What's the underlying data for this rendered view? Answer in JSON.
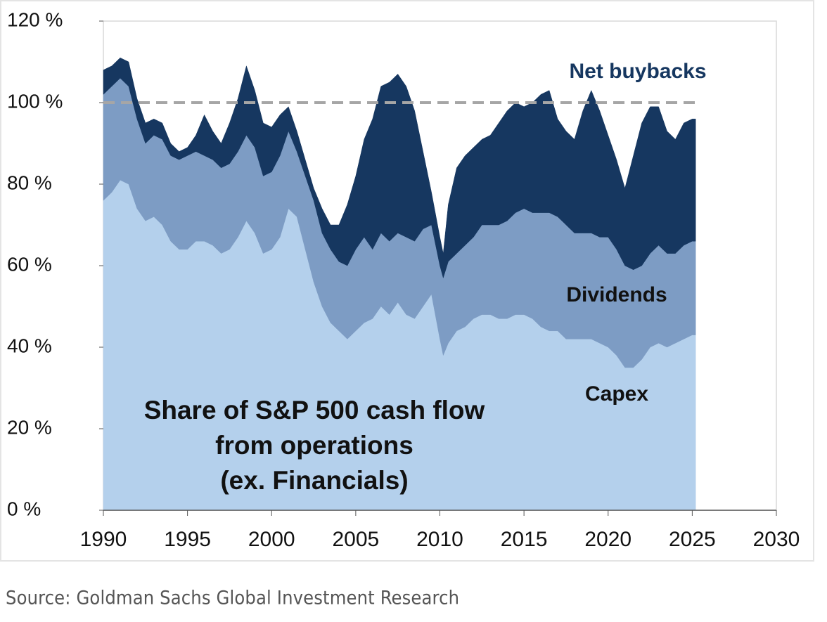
{
  "chart_data": {
    "type": "stacked_area",
    "title": [
      "Share of S&P 500 cash flow",
      "from operations",
      "(ex. Financials)"
    ],
    "source": "Source: Goldman Sachs Global Investment Research",
    "x": [
      1990.0,
      1990.5,
      1991.0,
      1991.5,
      1992.0,
      1992.5,
      1993.0,
      1993.5,
      1994.0,
      1994.5,
      1995.0,
      1995.5,
      1996.0,
      1996.5,
      1997.0,
      1997.5,
      1998.0,
      1998.5,
      1999.0,
      1999.5,
      2000.0,
      2000.5,
      2001.0,
      2001.5,
      2002.0,
      2002.5,
      2003.0,
      2003.5,
      2004.0,
      2004.5,
      2005.0,
      2005.5,
      2006.0,
      2006.5,
      2007.0,
      2007.5,
      2008.0,
      2008.5,
      2009.0,
      2009.5,
      2010.0,
      2010.2,
      2010.5,
      2011.0,
      2011.5,
      2012.0,
      2012.5,
      2013.0,
      2013.5,
      2014.0,
      2014.5,
      2015.0,
      2015.5,
      2016.0,
      2016.5,
      2017.0,
      2017.5,
      2018.0,
      2018.5,
      2019.0,
      2019.5,
      2020.0,
      2020.5,
      2021.0,
      2021.5,
      2022.0,
      2022.5,
      2023.0,
      2023.5,
      2024.0,
      2024.5,
      2025.0,
      2025.2
    ],
    "series": [
      {
        "name": "Capex",
        "color": "#b4d0ec",
        "values": [
          76,
          78,
          81,
          80,
          74,
          71,
          72,
          70,
          66,
          64,
          64,
          66,
          66,
          65,
          63,
          64,
          67,
          71,
          68,
          63,
          64,
          67,
          74,
          72,
          64,
          56,
          50,
          46,
          44,
          42,
          44,
          46,
          47,
          50,
          48,
          51,
          48,
          47,
          50,
          53,
          42,
          38,
          41,
          44,
          45,
          47,
          48,
          48,
          47,
          47,
          48,
          48,
          47,
          45,
          44,
          44,
          42,
          42,
          42,
          42,
          41,
          40,
          38,
          35,
          35,
          37,
          40,
          41,
          40,
          41,
          42,
          43,
          43
        ]
      },
      {
        "name": "Dividends",
        "color": "#7d9cc4",
        "values": [
          26,
          26,
          25,
          24,
          22,
          19,
          20,
          21,
          21,
          22,
          23,
          22,
          21,
          21,
          21,
          21,
          21,
          21,
          21,
          19,
          19,
          20,
          19,
          16,
          18,
          20,
          18,
          18,
          17,
          18,
          20,
          21,
          17,
          18,
          18,
          17,
          19,
          19,
          19,
          17,
          18,
          19,
          20,
          19,
          20,
          20,
          22,
          22,
          23,
          24,
          25,
          26,
          26,
          28,
          29,
          28,
          28,
          26,
          26,
          26,
          26,
          27,
          26,
          25,
          24,
          23,
          23,
          24,
          23,
          22,
          23,
          23,
          23
        ]
      },
      {
        "name": "Net buybacks",
        "color": "#163760",
        "values": [
          6,
          5,
          5,
          6,
          5,
          5,
          4,
          4,
          3,
          2,
          2,
          4,
          10,
          7,
          6,
          10,
          13,
          17,
          14,
          13,
          11,
          10,
          6,
          5,
          4,
          3,
          6,
          6,
          9,
          15,
          18,
          24,
          32,
          36,
          39,
          39,
          37,
          32,
          19,
          8,
          7,
          6,
          14,
          21,
          22,
          22,
          21,
          22,
          25,
          27,
          27,
          25,
          27,
          29,
          30,
          24,
          23,
          23,
          30,
          35,
          31,
          25,
          22,
          19,
          28,
          35,
          36,
          34,
          30,
          28,
          30,
          30,
          30
        ]
      }
    ],
    "xlim": [
      1990,
      2030
    ],
    "xticks": [
      1990,
      1995,
      2000,
      2005,
      2010,
      2015,
      2020,
      2025,
      2030
    ],
    "ylim": [
      0,
      120
    ],
    "yticks": [
      {
        "value": 0,
        "label": "0 %"
      },
      {
        "value": 20,
        "label": "20 %"
      },
      {
        "value": 40,
        "label": "40 %"
      },
      {
        "value": 60,
        "label": "60 %"
      },
      {
        "value": 80,
        "label": "80 %"
      },
      {
        "value": 100,
        "label": "100 %"
      },
      {
        "value": 120,
        "label": "120 %"
      }
    ],
    "reference_line": {
      "value": 100,
      "color": "#a6a6a6"
    },
    "grid": false
  }
}
